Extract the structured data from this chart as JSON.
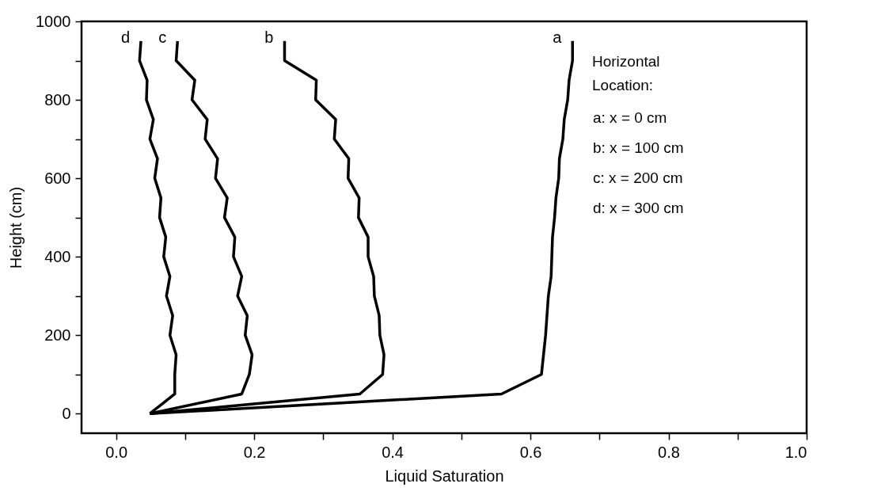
{
  "chart_data": {
    "type": "line",
    "xlabel": "Liquid Saturation",
    "ylabel": "Height (cm)",
    "xlim": [
      -0.05,
      1.0
    ],
    "xticks": [
      {
        "value": 0,
        "label": "0.0"
      },
      {
        "value": 0.1,
        "label": null
      },
      0.2,
      {
        "value": 0.3,
        "label": null
      },
      0.4,
      {
        "value": 0.5,
        "label": null
      },
      0.6,
      {
        "value": 0.7,
        "label": null
      },
      0.8,
      {
        "value": 0.9,
        "label": null
      },
      {
        "value": 1,
        "label": "1.0"
      }
    ],
    "ylim": [
      -50,
      1000
    ],
    "yticks": [
      0,
      {
        "value": 100,
        "label": null
      },
      200,
      {
        "value": 300,
        "label": null
      },
      400,
      {
        "value": 500,
        "label": null
      },
      600,
      {
        "value": 700,
        "label": null
      },
      800,
      {
        "value": 900,
        "label": null
      },
      1000
    ],
    "grid": false,
    "legend": false,
    "marker": "none",
    "line_style": "solid",
    "annotations": [
      "Horizontal Location:",
      "a: x = 0 cm",
      "b: x = 100 cm",
      "c: x = 200 cm",
      "d: x = 300 cm"
    ],
    "series": [
      {
        "name": "a",
        "color": "#000000",
        "x": [
          0.049,
          0.558,
          0.616,
          0.619,
          0.622,
          0.624,
          0.626,
          0.63,
          0.631,
          0.632,
          0.635,
          0.637,
          0.641,
          0.642,
          0.647,
          0.649,
          0.654,
          0.656,
          0.661,
          0.661
        ],
        "values": [
          0,
          50,
          100,
          150,
          200,
          250,
          300,
          350,
          400,
          450,
          500,
          550,
          600,
          650,
          700,
          750,
          800,
          850,
          900,
          950
        ]
      },
      {
        "name": "b",
        "color": "#000000",
        "x": [
          0.049,
          0.353,
          0.386,
          0.388,
          0.382,
          0.381,
          0.374,
          0.373,
          0.365,
          0.365,
          0.351,
          0.352,
          0.336,
          0.337,
          0.316,
          0.318,
          0.289,
          0.29,
          0.244,
          0.244
        ],
        "values": [
          0,
          50,
          100,
          150,
          200,
          250,
          300,
          350,
          400,
          450,
          500,
          550,
          600,
          650,
          700,
          750,
          800,
          850,
          900,
          950
        ]
      },
      {
        "name": "c",
        "color": "#000000",
        "x": [
          0.049,
          0.182,
          0.193,
          0.197,
          0.187,
          0.19,
          0.176,
          0.182,
          0.17,
          0.172,
          0.157,
          0.161,
          0.144,
          0.147,
          0.129,
          0.132,
          0.11,
          0.114,
          0.087,
          0.089
        ],
        "values": [
          0,
          50,
          100,
          150,
          200,
          250,
          300,
          350,
          400,
          450,
          500,
          550,
          600,
          650,
          700,
          750,
          800,
          850,
          900,
          950
        ]
      },
      {
        "name": "d",
        "color": "#000000",
        "x": [
          0.049,
          0.085,
          0.085,
          0.087,
          0.078,
          0.082,
          0.073,
          0.078,
          0.069,
          0.072,
          0.063,
          0.065,
          0.056,
          0.06,
          0.049,
          0.054,
          0.044,
          0.045,
          0.034,
          0.036
        ],
        "values": [
          0,
          50,
          100,
          150,
          200,
          250,
          300,
          350,
          400,
          450,
          500,
          550,
          600,
          650,
          700,
          750,
          800,
          850,
          900,
          950
        ]
      }
    ]
  }
}
